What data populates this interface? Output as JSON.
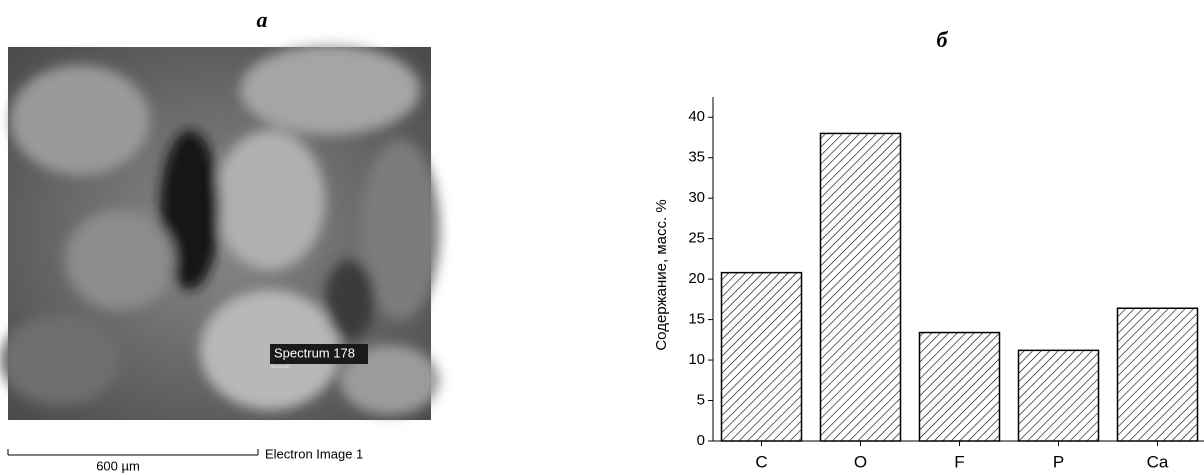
{
  "panel_a": {
    "label": "а",
    "spectrum_label": "Spectrum 178",
    "scale_label": "600 µm",
    "image_caption": "Electron Image 1"
  },
  "chart_data": {
    "type": "bar",
    "panel_label": "б",
    "y_label": "Содержание, масс. %",
    "categories": [
      "C",
      "O",
      "F",
      "P",
      "Ca"
    ],
    "values": [
      20.8,
      38,
      13.4,
      11.2,
      16.4
    ],
    "color": "#ffffff",
    "hatch": true,
    "ylim": [
      0,
      42.5
    ],
    "yticks": [
      0,
      5,
      10,
      15,
      20,
      25,
      30,
      35,
      40
    ],
    "grid": false
  }
}
